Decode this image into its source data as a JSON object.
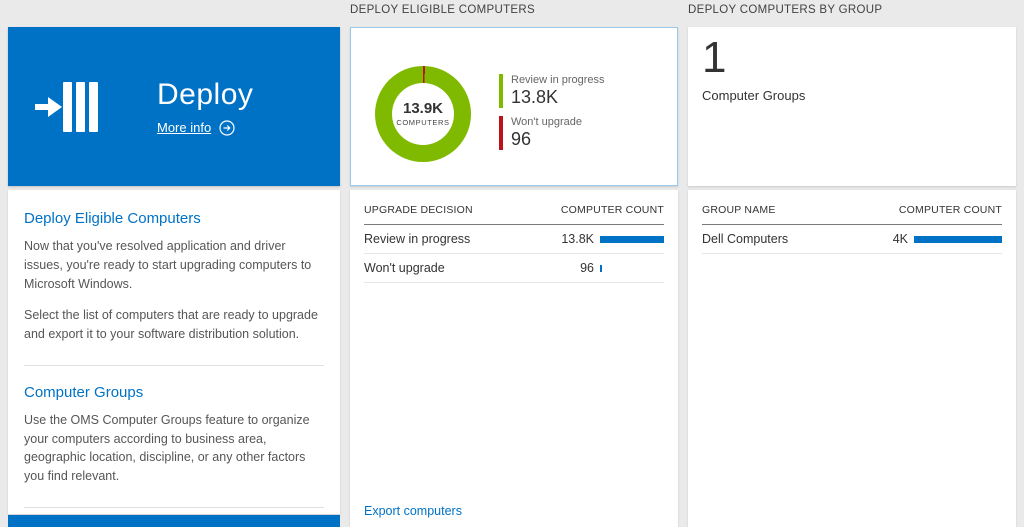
{
  "colors": {
    "accent_blue": "#0072c6",
    "chart_green": "#7fba00",
    "chart_red": "#ba141a",
    "bar_blue": "#0072c6",
    "page_background": "#eaeaea"
  },
  "left_panel": {
    "tile": {
      "title": "Deploy",
      "more_info_label": "More info"
    },
    "sections": [
      {
        "heading": "Deploy Eligible Computers",
        "paragraphs": [
          "Now that you've resolved application and driver issues, you're ready to start upgrading computers to Microsoft Windows.",
          "Select the list of computers that are ready to upgrade and export it to your software distribution solution."
        ]
      },
      {
        "heading": "Computer Groups",
        "paragraphs": [
          "Use the OMS Computer Groups feature to organize your computers according to business area, geographic location, discipline, or any other factors you find relevant."
        ]
      }
    ]
  },
  "eligible_panel": {
    "header": "DEPLOY ELIGIBLE COMPUTERS",
    "donut_center_value": "13.9K",
    "donut_center_label": "COMPUTERS",
    "legend": [
      {
        "label": "Review in progress",
        "value": "13.8K"
      },
      {
        "label": "Won't upgrade",
        "value": "96"
      }
    ],
    "table": {
      "columns": [
        "UPGRADE DECISION",
        "COMPUTER COUNT"
      ],
      "rows": [
        {
          "label": "Review in progress",
          "value": "13.8K",
          "bar_pct": 100
        },
        {
          "label": "Won't upgrade",
          "value": "96",
          "bar_pct": 3
        }
      ]
    },
    "export_link": "Export computers"
  },
  "groups_panel": {
    "header": "DEPLOY COMPUTERS BY GROUP",
    "count": "1",
    "count_label": "Computer Groups",
    "table": {
      "columns": [
        "GROUP NAME",
        "COMPUTER COUNT"
      ],
      "rows": [
        {
          "label": "Dell Computers",
          "value": "4K",
          "bar_pct": 100
        }
      ]
    }
  },
  "chart_data": {
    "type": "pie",
    "title": "Deploy Eligible Computers",
    "categories": [
      "Review in progress",
      "Won't upgrade"
    ],
    "values": [
      13800,
      96
    ],
    "total_label": "13.9K COMPUTERS",
    "colors": [
      "#7fba00",
      "#ba141a"
    ],
    "legend_position": "right"
  }
}
